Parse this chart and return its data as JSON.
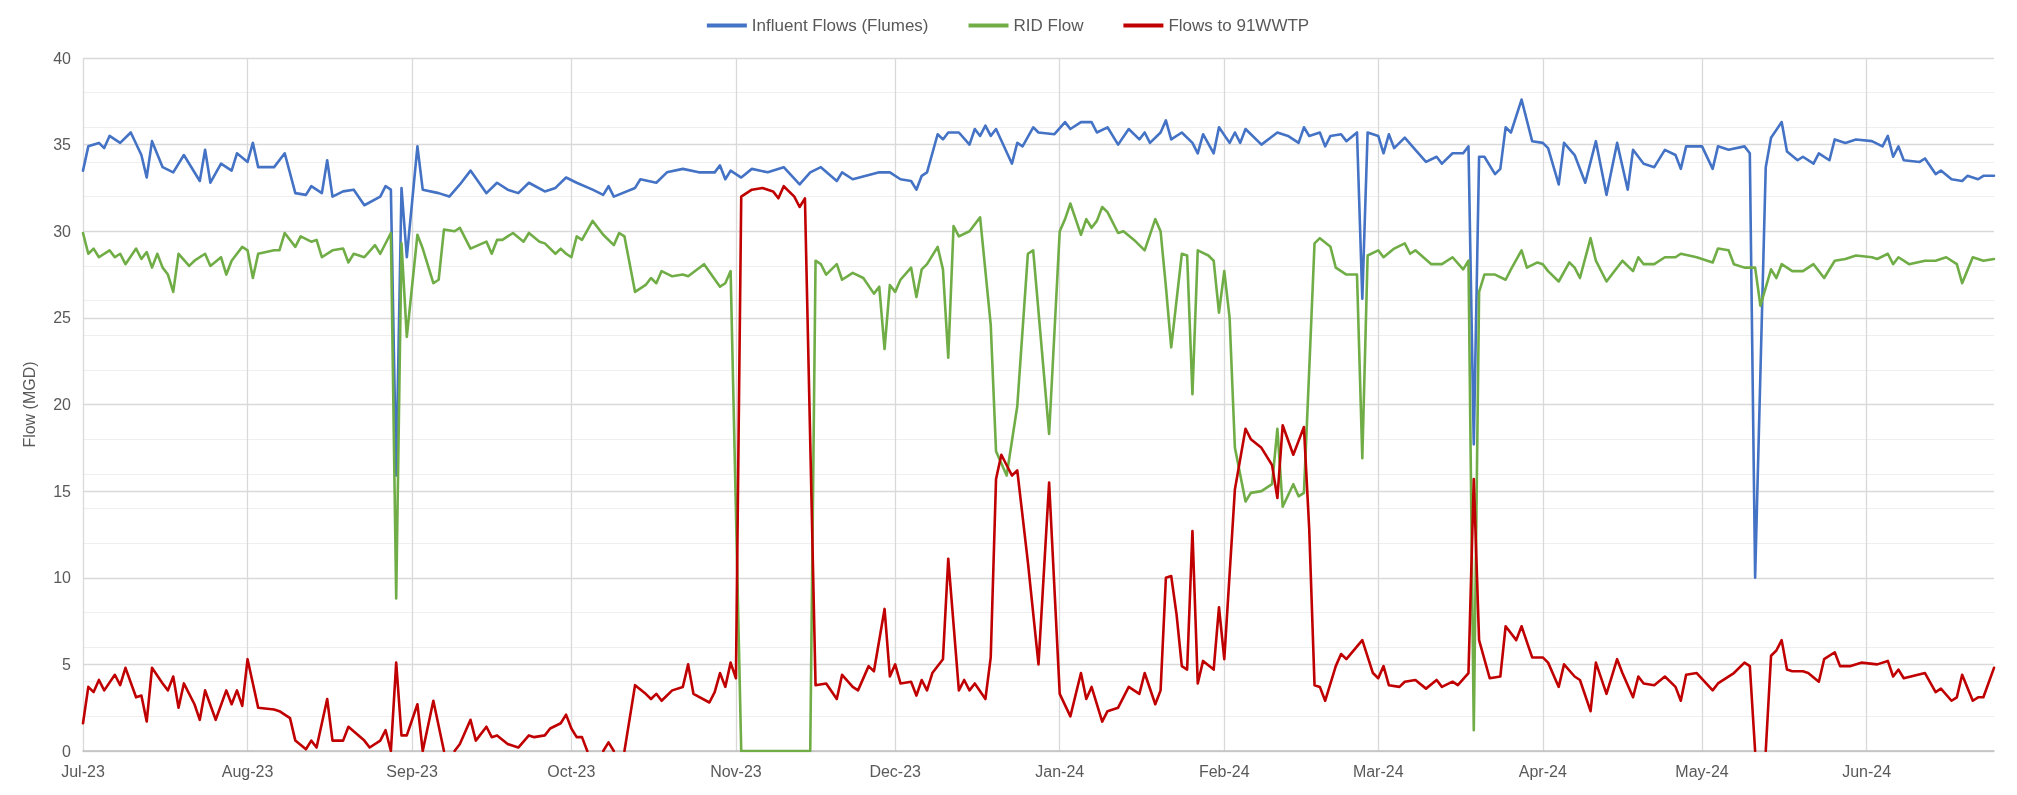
{
  "chart_data": {
    "type": "line",
    "ylabel": "Flow (MGD)",
    "legend": "top",
    "grid": true,
    "marker": "none",
    "line_style": "solid",
    "xlim": [
      "2023-07-01",
      "2024-06-25"
    ],
    "xticks": [
      {
        "value": "2023-07-01",
        "label": "Jul-23"
      },
      {
        "value": "2023-08-01",
        "label": "Aug-23"
      },
      {
        "value": "2023-09-01",
        "label": "Sep-23"
      },
      {
        "value": "2023-10-01",
        "label": "Oct-23"
      },
      {
        "value": "2023-11-01",
        "label": "Nov-23"
      },
      {
        "value": "2023-12-01",
        "label": "Dec-23"
      },
      {
        "value": "2024-01-01",
        "label": "Jan-24"
      },
      {
        "value": "2024-02-01",
        "label": "Feb-24"
      },
      {
        "value": "2024-03-01",
        "label": "Mar-24"
      },
      {
        "value": "2024-04-01",
        "label": "Apr-24"
      },
      {
        "value": "2024-05-01",
        "label": "May-24"
      },
      {
        "value": "2024-06-01",
        "label": "Jun-24"
      }
    ],
    "ylim": [
      0,
      40
    ],
    "yticks": [
      0,
      5,
      10,
      15,
      20,
      25,
      30,
      35,
      40
    ],
    "series": [
      {
        "name": "Influent Flows (Flumes)",
        "color": "#4472c4",
        "x": [
          "2023-07-01",
          "2023-07-02",
          "2023-07-04",
          "2023-07-05",
          "2023-07-06",
          "2023-07-08",
          "2023-07-10",
          "2023-07-12",
          "2023-07-13",
          "2023-07-14",
          "2023-07-16",
          "2023-07-18",
          "2023-07-20",
          "2023-07-23",
          "2023-07-24",
          "2023-07-25",
          "2023-07-27",
          "2023-07-29",
          "2023-07-30",
          "2023-08-01",
          "2023-08-02",
          "2023-08-03",
          "2023-08-06",
          "2023-08-08",
          "2023-08-10",
          "2023-08-12",
          "2023-08-13",
          "2023-08-15",
          "2023-08-16",
          "2023-08-17",
          "2023-08-19",
          "2023-08-21",
          "2023-08-23",
          "2023-08-26",
          "2023-08-27",
          "2023-08-28",
          "2023-08-29",
          "2023-08-30",
          "2023-08-31",
          "2023-09-02",
          "2023-09-03",
          "2023-09-06",
          "2023-09-08",
          "2023-09-10",
          "2023-09-12",
          "2023-09-15",
          "2023-09-17",
          "2023-09-19",
          "2023-09-21",
          "2023-09-23",
          "2023-09-26",
          "2023-09-28",
          "2023-09-30",
          "2023-10-02",
          "2023-10-05",
          "2023-10-07",
          "2023-10-08",
          "2023-10-09",
          "2023-10-13",
          "2023-10-14",
          "2023-10-17",
          "2023-10-19",
          "2023-10-22",
          "2023-10-25",
          "2023-10-28",
          "2023-10-29",
          "2023-10-30",
          "2023-10-31",
          "2023-11-02",
          "2023-11-04",
          "2023-11-07",
          "2023-11-10",
          "2023-11-13",
          "2023-11-15",
          "2023-11-17",
          "2023-11-20",
          "2023-11-21",
          "2023-11-23",
          "2023-11-28",
          "2023-11-30",
          "2023-12-02",
          "2023-12-04",
          "2023-12-05",
          "2023-12-06",
          "2023-12-07",
          "2023-12-09",
          "2023-12-10",
          "2023-12-11",
          "2023-12-13",
          "2023-12-15",
          "2023-12-16",
          "2023-12-17",
          "2023-12-18",
          "2023-12-19",
          "2023-12-20",
          "2023-12-23",
          "2023-12-24",
          "2023-12-25",
          "2023-12-27",
          "2023-12-28",
          "2023-12-31",
          "2024-01-02",
          "2024-01-03",
          "2024-01-05",
          "2024-01-07",
          "2024-01-08",
          "2024-01-10",
          "2024-01-12",
          "2024-01-14",
          "2024-01-16",
          "2024-01-17",
          "2024-01-18",
          "2024-01-20",
          "2024-01-21",
          "2024-01-22",
          "2024-01-24",
          "2024-01-26",
          "2024-01-27",
          "2024-01-28",
          "2024-01-30",
          "2024-01-31",
          "2024-02-02",
          "2024-02-03",
          "2024-02-04",
          "2024-02-05",
          "2024-02-08",
          "2024-02-11",
          "2024-02-13",
          "2024-02-15",
          "2024-02-16",
          "2024-02-17",
          "2024-02-19",
          "2024-02-20",
          "2024-02-21",
          "2024-02-23",
          "2024-02-24",
          "2024-02-26",
          "2024-02-27",
          "2024-02-28",
          "2024-03-01",
          "2024-03-02",
          "2024-03-03",
          "2024-03-04",
          "2024-03-06",
          "2024-03-08",
          "2024-03-10",
          "2024-03-12",
          "2024-03-13",
          "2024-03-15",
          "2024-03-17",
          "2024-03-18",
          "2024-03-19",
          "2024-03-20",
          "2024-03-21",
          "2024-03-23",
          "2024-03-24",
          "2024-03-25",
          "2024-03-26",
          "2024-03-28",
          "2024-03-30",
          "2024-04-01",
          "2024-04-02",
          "2024-04-04",
          "2024-04-05",
          "2024-04-07",
          "2024-04-09",
          "2024-04-11",
          "2024-04-13",
          "2024-04-15",
          "2024-04-17",
          "2024-04-18",
          "2024-04-20",
          "2024-04-22",
          "2024-04-24",
          "2024-04-26",
          "2024-04-27",
          "2024-04-28",
          "2024-05-01",
          "2024-05-03",
          "2024-05-04",
          "2024-05-06",
          "2024-05-09",
          "2024-05-10",
          "2024-05-11",
          "2024-05-13",
          "2024-05-14",
          "2024-05-16",
          "2024-05-17",
          "2024-05-19",
          "2024-05-20",
          "2024-05-22",
          "2024-05-23",
          "2024-05-25",
          "2024-05-26",
          "2024-05-28",
          "2024-05-30",
          "2024-06-02",
          "2024-06-04",
          "2024-06-05",
          "2024-06-06",
          "2024-06-07",
          "2024-06-08",
          "2024-06-11",
          "2024-06-12",
          "2024-06-14",
          "2024-06-15",
          "2024-06-17",
          "2024-06-19",
          "2024-06-20",
          "2024-06-22",
          "2024-06-23",
          "2024-06-25"
        ],
        "values": [
          33.5,
          34.9,
          35.1,
          34.8,
          35.5,
          35.1,
          35.7,
          34.4,
          33.1,
          35.2,
          33.7,
          33.4,
          34.4,
          32.9,
          34.7,
          32.8,
          33.9,
          33.5,
          34.5,
          34.0,
          35.1,
          33.7,
          33.7,
          34.5,
          32.2,
          32.1,
          32.6,
          32.2,
          34.1,
          32.0,
          32.3,
          32.4,
          31.5,
          32.0,
          32.6,
          32.4,
          15.9,
          32.5,
          28.5,
          34.9,
          32.4,
          32.2,
          32.0,
          32.7,
          33.5,
          32.2,
          32.8,
          32.4,
          32.2,
          32.8,
          32.3,
          32.5,
          33.1,
          32.8,
          32.4,
          32.1,
          32.6,
          32.0,
          32.5,
          33.0,
          32.8,
          33.4,
          33.6,
          33.4,
          33.4,
          33.8,
          33.0,
          33.5,
          33.1,
          33.6,
          33.4,
          33.7,
          32.7,
          33.4,
          33.7,
          32.9,
          33.4,
          33.0,
          33.4,
          33.4,
          33.0,
          32.9,
          32.4,
          33.2,
          33.4,
          35.6,
          35.3,
          35.7,
          35.7,
          35.0,
          35.9,
          35.5,
          36.1,
          35.5,
          35.9,
          33.9,
          35.1,
          34.9,
          36.0,
          35.7,
          35.6,
          36.3,
          35.9,
          36.3,
          36.3,
          35.7,
          36.0,
          35.0,
          35.9,
          35.3,
          35.7,
          35.1,
          35.7,
          36.4,
          35.3,
          35.7,
          35.1,
          34.5,
          35.6,
          34.5,
          36.0,
          35.1,
          35.7,
          35.1,
          35.9,
          35.0,
          35.7,
          35.5,
          35.1,
          36.0,
          35.5,
          35.7,
          34.9,
          35.5,
          35.6,
          35.2,
          35.7,
          26.1,
          35.7,
          35.5,
          34.5,
          35.6,
          34.8,
          35.4,
          34.7,
          34.0,
          34.3,
          33.9,
          34.5,
          34.5,
          34.9,
          17.7,
          34.3,
          34.3,
          33.3,
          33.6,
          36.0,
          35.7,
          37.6,
          35.2,
          35.1,
          34.8,
          32.7,
          35.1,
          34.4,
          32.8,
          35.2,
          32.1,
          35.1,
          32.4,
          34.7,
          33.9,
          33.7,
          34.7,
          34.4,
          33.6,
          34.9,
          34.9,
          33.6,
          34.9,
          34.7,
          34.9,
          34.5,
          10.0,
          33.7,
          35.4,
          36.3,
          34.6,
          34.1,
          34.3,
          33.9,
          34.5,
          34.1,
          35.3,
          35.1,
          35.3,
          35.2,
          34.9,
          35.5,
          34.3,
          34.9,
          34.1,
          34.0,
          34.2,
          33.3,
          33.5,
          33.0,
          32.9,
          33.2,
          33.0,
          33.2,
          33.2
        ]
      },
      {
        "name": "RID Flow",
        "color": "#70ad47",
        "x": [
          "2023-07-01",
          "2023-07-02",
          "2023-07-03",
          "2023-07-04",
          "2023-07-06",
          "2023-07-07",
          "2023-07-08",
          "2023-07-09",
          "2023-07-11",
          "2023-07-12",
          "2023-07-13",
          "2023-07-14",
          "2023-07-15",
          "2023-07-16",
          "2023-07-17",
          "2023-07-18",
          "2023-07-19",
          "2023-07-21",
          "2023-07-22",
          "2023-07-24",
          "2023-07-25",
          "2023-07-27",
          "2023-07-28",
          "2023-07-29",
          "2023-07-31",
          "2023-08-01",
          "2023-08-02",
          "2023-08-03",
          "2023-08-06",
          "2023-08-07",
          "2023-08-08",
          "2023-08-10",
          "2023-08-11",
          "2023-08-13",
          "2023-08-14",
          "2023-08-15",
          "2023-08-17",
          "2023-08-19",
          "2023-08-20",
          "2023-08-21",
          "2023-08-23",
          "2023-08-25",
          "2023-08-26",
          "2023-08-28",
          "2023-08-29",
          "2023-08-30",
          "2023-08-31",
          "2023-09-02",
          "2023-09-03",
          "2023-09-05",
          "2023-09-06",
          "2023-09-07",
          "2023-09-09",
          "2023-09-10",
          "2023-09-12",
          "2023-09-15",
          "2023-09-16",
          "2023-09-17",
          "2023-09-18",
          "2023-09-20",
          "2023-09-22",
          "2023-09-23",
          "2023-09-25",
          "2023-09-26",
          "2023-09-28",
          "2023-09-29",
          "2023-09-30",
          "2023-10-01",
          "2023-10-02",
          "2023-10-03",
          "2023-10-05",
          "2023-10-07",
          "2023-10-09",
          "2023-10-10",
          "2023-10-11",
          "2023-10-13",
          "2023-10-15",
          "2023-10-16",
          "2023-10-17",
          "2023-10-18",
          "2023-10-20",
          "2023-10-22",
          "2023-10-23",
          "2023-10-26",
          "2023-10-29",
          "2023-10-30",
          "2023-10-31",
          "2023-11-02",
          "2023-11-15",
          "2023-11-16",
          "2023-11-17",
          "2023-11-18",
          "2023-11-20",
          "2023-11-21",
          "2023-11-23",
          "2023-11-25",
          "2023-11-27",
          "2023-11-28",
          "2023-11-29",
          "2023-11-30",
          "2023-12-01",
          "2023-12-02",
          "2023-12-04",
          "2023-12-05",
          "2023-12-06",
          "2023-12-07",
          "2023-12-09",
          "2023-12-10",
          "2023-12-11",
          "2023-12-12",
          "2023-12-13",
          "2023-12-15",
          "2023-12-17",
          "2023-12-19",
          "2023-12-20",
          "2023-12-22",
          "2023-12-24",
          "2023-12-26",
          "2023-12-27",
          "2023-12-30",
          "2024-01-01",
          "2024-01-02",
          "2024-01-03",
          "2024-01-04",
          "2024-01-05",
          "2024-01-06",
          "2024-01-07",
          "2024-01-08",
          "2024-01-09",
          "2024-01-10",
          "2024-01-12",
          "2024-01-13",
          "2024-01-15",
          "2024-01-17",
          "2024-01-19",
          "2024-01-20",
          "2024-01-21",
          "2024-01-22",
          "2024-01-24",
          "2024-01-25",
          "2024-01-26",
          "2024-01-27",
          "2024-01-29",
          "2024-01-30",
          "2024-01-31",
          "2024-02-01",
          "2024-02-02",
          "2024-02-03",
          "2024-02-05",
          "2024-02-06",
          "2024-02-08",
          "2024-02-10",
          "2024-02-11",
          "2024-02-12",
          "2024-02-14",
          "2024-02-15",
          "2024-02-16",
          "2024-02-17",
          "2024-02-18",
          "2024-02-19",
          "2024-02-21",
          "2024-02-22",
          "2024-02-24",
          "2024-02-26",
          "2024-02-27",
          "2024-02-28",
          "2024-03-01",
          "2024-03-02",
          "2024-03-04",
          "2024-03-06",
          "2024-03-07",
          "2024-03-08",
          "2024-03-11",
          "2024-03-13",
          "2024-03-15",
          "2024-03-17",
          "2024-03-18",
          "2024-03-19",
          "2024-03-20",
          "2024-03-21",
          "2024-03-23",
          "2024-03-25",
          "2024-03-26",
          "2024-03-28",
          "2024-03-29",
          "2024-03-31",
          "2024-04-01",
          "2024-04-02",
          "2024-04-04",
          "2024-04-06",
          "2024-04-07",
          "2024-04-08",
          "2024-04-10",
          "2024-04-11",
          "2024-04-13",
          "2024-04-16",
          "2024-04-18",
          "2024-04-19",
          "2024-04-20",
          "2024-04-22",
          "2024-04-24",
          "2024-04-26",
          "2024-04-27",
          "2024-04-30",
          "2024-05-03",
          "2024-05-04",
          "2024-05-06",
          "2024-05-07",
          "2024-05-09",
          "2024-05-11",
          "2024-05-12",
          "2024-05-14",
          "2024-05-15",
          "2024-05-16",
          "2024-05-18",
          "2024-05-20",
          "2024-05-22",
          "2024-05-24",
          "2024-05-26",
          "2024-05-28",
          "2024-05-30",
          "2024-06-02",
          "2024-06-03",
          "2024-06-05",
          "2024-06-06",
          "2024-06-07",
          "2024-06-09",
          "2024-06-12",
          "2024-06-14",
          "2024-06-16",
          "2024-06-18",
          "2024-06-19",
          "2024-06-21",
          "2024-06-23",
          "2024-06-25"
        ],
        "values": [
          29.9,
          28.7,
          29.0,
          28.5,
          28.9,
          28.5,
          28.7,
          28.1,
          29.0,
          28.4,
          28.8,
          27.9,
          28.7,
          27.9,
          27.5,
          26.5,
          28.7,
          28.0,
          28.3,
          28.7,
          28.0,
          28.5,
          27.5,
          28.3,
          29.1,
          28.9,
          27.3,
          28.7,
          28.9,
          28.9,
          29.9,
          29.1,
          29.7,
          29.4,
          29.5,
          28.5,
          28.9,
          29.0,
          28.2,
          28.7,
          28.5,
          29.2,
          28.7,
          29.9,
          8.8,
          29.3,
          23.9,
          29.8,
          29.0,
          27.0,
          27.2,
          30.1,
          30.0,
          30.2,
          29.0,
          29.4,
          28.7,
          29.5,
          29.5,
          29.9,
          29.4,
          29.9,
          29.4,
          29.3,
          28.7,
          29.0,
          28.7,
          28.5,
          29.7,
          29.5,
          30.6,
          29.8,
          29.2,
          29.9,
          29.7,
          26.5,
          26.9,
          27.3,
          27.0,
          27.7,
          27.4,
          27.5,
          27.4,
          28.1,
          26.8,
          27.0,
          27.7,
          0,
          0,
          28.3,
          28.1,
          27.5,
          28.1,
          27.2,
          27.6,
          27.3,
          26.4,
          26.8,
          23.2,
          26.9,
          26.5,
          27.2,
          27.9,
          26.2,
          27.8,
          28.1,
          29.1,
          27.8,
          22.7,
          30.3,
          29.7,
          30.0,
          30.8,
          24.6,
          17.3,
          15.9,
          19.9,
          28.7,
          28.9,
          18.3,
          30.0,
          30.7,
          31.6,
          30.7,
          29.8,
          30.7,
          30.2,
          30.6,
          31.4,
          31.1,
          29.9,
          30.0,
          29.5,
          28.9,
          30.7,
          30.0,
          26.8,
          23.3,
          28.7,
          28.6,
          20.6,
          28.9,
          28.6,
          28.3,
          25.3,
          27.7,
          25.0,
          17.5,
          14.4,
          14.9,
          15.0,
          15.4,
          18.6,
          14.1,
          15.4,
          14.7,
          14.9,
          22.0,
          29.3,
          29.6,
          29.1,
          27.9,
          27.5,
          27.5,
          16.9,
          28.6,
          28.9,
          28.5,
          29.0,
          29.3,
          28.7,
          28.9,
          28.1,
          28.1,
          28.5,
          27.8,
          28.3,
          1.2,
          26.5,
          27.5,
          27.5,
          27.2,
          27.8,
          28.9,
          27.9,
          28.2,
          28.1,
          27.7,
          27.1,
          28.2,
          27.9,
          27.3,
          29.6,
          28.3,
          27.1,
          28.3,
          27.7,
          28.5,
          28.1,
          28.1,
          28.5,
          28.5,
          28.7,
          28.5,
          28.2,
          29.0,
          28.9,
          28.1,
          27.9,
          27.9,
          25.7,
          27.8,
          27.3,
          28.1,
          27.7,
          27.7,
          28.1,
          27.3,
          28.3,
          28.4,
          28.6,
          28.5,
          28.4,
          28.7,
          28.1,
          28.5,
          28.1,
          28.3,
          28.3,
          28.5,
          28.1,
          27.0,
          28.5,
          28.3,
          28.4
        ]
      },
      {
        "name": "Flows to 91WWTP",
        "color": "#c00000",
        "x": [
          "2023-07-01",
          "2023-07-02",
          "2023-07-03",
          "2023-07-04",
          "2023-07-05",
          "2023-07-07",
          "2023-07-08",
          "2023-07-09",
          "2023-07-11",
          "2023-07-12",
          "2023-07-13",
          "2023-07-14",
          "2023-07-16",
          "2023-07-17",
          "2023-07-18",
          "2023-07-19",
          "2023-07-20",
          "2023-07-22",
          "2023-07-23",
          "2023-07-24",
          "2023-07-26",
          "2023-07-28",
          "2023-07-29",
          "2023-07-30",
          "2023-07-31",
          "2023-08-01",
          "2023-08-03",
          "2023-08-06",
          "2023-08-07",
          "2023-08-09",
          "2023-08-10",
          "2023-08-12",
          "2023-08-13",
          "2023-08-14",
          "2023-08-16",
          "2023-08-17",
          "2023-08-19",
          "2023-08-20",
          "2023-08-23",
          "2023-08-24",
          "2023-08-26",
          "2023-08-27",
          "2023-08-28",
          "2023-08-29",
          "2023-08-30",
          "2023-08-31",
          "2023-09-02",
          "2023-09-03",
          "2023-09-05",
          "2023-09-07",
          "2023-09-08",
          "2023-09-09",
          "2023-09-10",
          "2023-09-12",
          "2023-09-13",
          "2023-09-15",
          "2023-09-16",
          "2023-09-17",
          "2023-09-19",
          "2023-09-21",
          "2023-09-23",
          "2023-09-24",
          "2023-09-26",
          "2023-09-27",
          "2023-09-29",
          "2023-09-30",
          "2023-10-01",
          "2023-10-02",
          "2023-10-03",
          "2023-10-04",
          "2023-10-05",
          "2023-10-07",
          "2023-10-08",
          "2023-10-09",
          "2023-10-10",
          "2023-10-11",
          "2023-10-13",
          "2023-10-15",
          "2023-10-16",
          "2023-10-17",
          "2023-10-18",
          "2023-10-20",
          "2023-10-22",
          "2023-10-23",
          "2023-10-24",
          "2023-10-27",
          "2023-10-28",
          "2023-10-29",
          "2023-10-30",
          "2023-10-31",
          "2023-11-01",
          "2023-11-02",
          "2023-11-04",
          "2023-11-06",
          "2023-11-08",
          "2023-11-09",
          "2023-11-10",
          "2023-11-12",
          "2023-11-13",
          "2023-11-14",
          "2023-11-16",
          "2023-11-18",
          "2023-11-20",
          "2023-11-21",
          "2023-11-23",
          "2023-11-24",
          "2023-11-26",
          "2023-11-27",
          "2023-11-29",
          "2023-11-30",
          "2023-12-01",
          "2023-12-02",
          "2023-12-04",
          "2023-12-05",
          "2023-12-06",
          "2023-12-07",
          "2023-12-08",
          "2023-12-10",
          "2023-12-11",
          "2023-12-13",
          "2023-12-14",
          "2023-12-15",
          "2023-12-16",
          "2023-12-18",
          "2023-12-19",
          "2023-12-20",
          "2023-12-21",
          "2023-12-23",
          "2023-12-24",
          "2023-12-26",
          "2023-12-28",
          "2023-12-30",
          "2024-01-01",
          "2024-01-03",
          "2024-01-05",
          "2024-01-06",
          "2024-01-07",
          "2024-01-09",
          "2024-01-10",
          "2024-01-12",
          "2024-01-14",
          "2024-01-16",
          "2024-01-17",
          "2024-01-19",
          "2024-01-20",
          "2024-01-21",
          "2024-01-22",
          "2024-01-23",
          "2024-01-24",
          "2024-01-25",
          "2024-01-26",
          "2024-01-27",
          "2024-01-28",
          "2024-01-30",
          "2024-01-31",
          "2024-02-01",
          "2024-02-03",
          "2024-02-05",
          "2024-02-06",
          "2024-02-08",
          "2024-02-10",
          "2024-02-11",
          "2024-02-12",
          "2024-02-14",
          "2024-02-15",
          "2024-02-16",
          "2024-02-17",
          "2024-02-18",
          "2024-02-19",
          "2024-02-20",
          "2024-02-22",
          "2024-02-23",
          "2024-02-24",
          "2024-02-27",
          "2024-02-29",
          "2024-03-01",
          "2024-03-02",
          "2024-03-03",
          "2024-03-05",
          "2024-03-06",
          "2024-03-08",
          "2024-03-10",
          "2024-03-12",
          "2024-03-13",
          "2024-03-15",
          "2024-03-16",
          "2024-03-18",
          "2024-03-19",
          "2024-03-20",
          "2024-03-22",
          "2024-03-24",
          "2024-03-25",
          "2024-03-27",
          "2024-03-28",
          "2024-03-30",
          "2024-04-01",
          "2024-04-02",
          "2024-04-04",
          "2024-04-05",
          "2024-04-07",
          "2024-04-08",
          "2024-04-10",
          "2024-04-11",
          "2024-04-13",
          "2024-04-15",
          "2024-04-16",
          "2024-04-18",
          "2024-04-19",
          "2024-04-20",
          "2024-04-22",
          "2024-04-24",
          "2024-04-26",
          "2024-04-27",
          "2024-04-28",
          "2024-04-30",
          "2024-05-03",
          "2024-05-04",
          "2024-05-07",
          "2024-05-09",
          "2024-05-10",
          "2024-05-11",
          "2024-05-12",
          "2024-05-13",
          "2024-05-14",
          "2024-05-15",
          "2024-05-16",
          "2024-05-17",
          "2024-05-18",
          "2024-05-20",
          "2024-05-21",
          "2024-05-23",
          "2024-05-24",
          "2024-05-26",
          "2024-05-27",
          "2024-05-29",
          "2024-05-31",
          "2024-06-03",
          "2024-06-05",
          "2024-06-06",
          "2024-06-07",
          "2024-06-08",
          "2024-06-12",
          "2024-06-14",
          "2024-06-15",
          "2024-06-17",
          "2024-06-18",
          "2024-06-19",
          "2024-06-21",
          "2024-06-22",
          "2024-06-23",
          "2024-06-25"
        ],
        "values": [
          1.6,
          3.7,
          3.4,
          4.1,
          3.5,
          4.4,
          3.8,
          4.8,
          3.1,
          3.2,
          1.7,
          4.8,
          3.9,
          3.5,
          4.3,
          2.5,
          3.9,
          2.7,
          1.8,
          3.5,
          1.8,
          3.5,
          2.7,
          3.5,
          2.6,
          5.3,
          2.5,
          2.4,
          2.3,
          1.9,
          0.6,
          0.1,
          0.6,
          0.2,
          3.0,
          0.6,
          0.6,
          1.4,
          0.6,
          0.2,
          0.6,
          1.2,
          0,
          5.1,
          0.9,
          0.9,
          2.7,
          0,
          2.9,
          0,
          null,
          0,
          0.4,
          1.8,
          0.6,
          1.4,
          0.8,
          0.9,
          0.4,
          0.2,
          0.9,
          0.8,
          0.9,
          1.3,
          1.6,
          2.1,
          1.3,
          0.8,
          0.8,
          0,
          null,
          0,
          0.5,
          0,
          null,
          0,
          3.8,
          3.3,
          3.0,
          3.3,
          2.9,
          3.5,
          3.7,
          5.0,
          3.3,
          2.8,
          3.4,
          4.5,
          3.7,
          5.1,
          4.2,
          32.0,
          32.4,
          32.5,
          32.3,
          31.9,
          32.6,
          32.0,
          31.4,
          31.9,
          3.8,
          3.9,
          3.0,
          4.4,
          3.7,
          3.5,
          4.9,
          4.6,
          8.2,
          4.3,
          5.0,
          3.9,
          4.0,
          3.2,
          4.1,
          3.5,
          4.5,
          5.3,
          11.1,
          3.5,
          4.1,
          3.5,
          3.9,
          3.0,
          5.4,
          15.7,
          17.1,
          15.9,
          16.2,
          10.9,
          5.0,
          15.5,
          3.3,
          2.0,
          4.5,
          3.0,
          3.7,
          1.7,
          2.3,
          2.5,
          3.7,
          3.3,
          4.5,
          2.7,
          3.5,
          10.0,
          10.1,
          7.9,
          4.9,
          4.7,
          12.7,
          3.9,
          5.2,
          4.7,
          8.3,
          5.3,
          15.1,
          18.6,
          18.0,
          17.5,
          16.5,
          14.6,
          18.8,
          17.1,
          17.9,
          18.7,
          12.8,
          3.8,
          3.7,
          2.9,
          4.9,
          5.6,
          5.3,
          6.4,
          4.5,
          4.2,
          4.9,
          3.8,
          3.7,
          4.0,
          4.1,
          3.6,
          4.1,
          3.7,
          4.0,
          3.8,
          4.5,
          15.7,
          6.4,
          4.2,
          4.3,
          7.2,
          6.4,
          7.2,
          5.4,
          5.4,
          5.1,
          3.7,
          5.0,
          4.3,
          4.1,
          2.3,
          5.1,
          3.3,
          5.3,
          4.5,
          3.1,
          4.3,
          3.9,
          3.8,
          4.3,
          3.7,
          2.9,
          4.4,
          4.5,
          3.5,
          3.9,
          4.5,
          5.1,
          4.9,
          0,
          null,
          0,
          5.5,
          5.8,
          6.4,
          4.7,
          4.6,
          4.6,
          4.5,
          4.0,
          5.3,
          5.7,
          4.9,
          4.9,
          5.1,
          5.0,
          5.2,
          4.3,
          4.7,
          4.2,
          4.5,
          3.4,
          3.6,
          2.9,
          3.1,
          4.4,
          2.9,
          3.1,
          3.1,
          4.8
        ]
      }
    ]
  }
}
